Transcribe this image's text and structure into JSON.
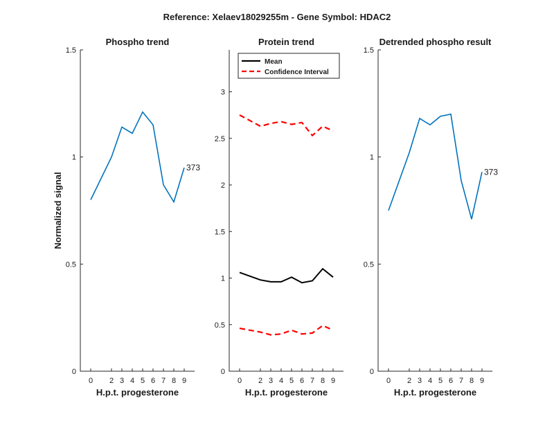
{
  "figure": {
    "title": "Reference:  Xelaev18029255m - Gene Symbol:  HDAC2"
  },
  "chart_data": [
    {
      "type": "line",
      "title": "Phospho trend",
      "xlabel": "H.p.t. progesterone",
      "ylabel": "Normalized signal",
      "xlim": [
        -1,
        10
      ],
      "ylim": [
        0,
        1.5
      ],
      "x_ticks": [
        0,
        2,
        3,
        4,
        5,
        6,
        7,
        8,
        9
      ],
      "x_tick_labels": [
        "0",
        "2",
        "3",
        "4",
        "5",
        "6",
        "7",
        "8",
        "9"
      ],
      "y_ticks": [
        0,
        0.5,
        1,
        1.5
      ],
      "y_tick_labels": [
        "0",
        "0.5",
        "1",
        "1.5"
      ],
      "series": [
        {
          "x": [
            0,
            2,
            3,
            4,
            5,
            6,
            7,
            8,
            9
          ],
          "values": [
            0.8,
            1.0,
            1.14,
            1.11,
            1.21,
            1.15,
            0.87,
            0.79,
            0.95
          ],
          "color": "#0072BD",
          "style": "solid"
        }
      ],
      "annotations": [
        {
          "text": "373",
          "x": 9,
          "y": 0.95
        }
      ]
    },
    {
      "type": "line",
      "title": "Protein trend",
      "xlabel": "H.p.t. progesterone",
      "ylabel": "",
      "xlim": [
        -1,
        10
      ],
      "ylim": [
        0,
        3.45
      ],
      "x_ticks": [
        0,
        2,
        3,
        4,
        5,
        6,
        7,
        8,
        9
      ],
      "x_tick_labels": [
        "0",
        "2",
        "3",
        "4",
        "5",
        "6",
        "7",
        "8",
        "9"
      ],
      "y_ticks": [
        0,
        0.5,
        1,
        1.5,
        2,
        2.5,
        3
      ],
      "y_tick_labels": [
        "0",
        "0.5",
        "1",
        "1.5",
        "2",
        "2.5",
        "3"
      ],
      "legend_position": "top-left",
      "series": [
        {
          "name": "Mean",
          "x": [
            0,
            2,
            3,
            4,
            5,
            6,
            7,
            8,
            9
          ],
          "values": [
            1.06,
            0.98,
            0.96,
            0.96,
            1.01,
            0.95,
            0.97,
            1.1,
            1.01
          ],
          "color": "#000000",
          "style": "solid"
        },
        {
          "name": "Confidence Interval",
          "x": [
            0,
            2,
            3,
            4,
            5,
            6,
            7,
            8,
            9
          ],
          "values": [
            2.75,
            2.63,
            2.66,
            2.68,
            2.65,
            2.67,
            2.53,
            2.63,
            2.58
          ],
          "color": "#FF0000",
          "style": "dashed"
        },
        {
          "name": "",
          "x": [
            0,
            2,
            3,
            4,
            5,
            6,
            7,
            8,
            9
          ],
          "values": [
            0.46,
            0.42,
            0.39,
            0.4,
            0.44,
            0.4,
            0.41,
            0.49,
            0.44
          ],
          "color": "#FF0000",
          "style": "dashed"
        }
      ],
      "legend": [
        {
          "label": "Mean",
          "color": "#000000",
          "style": "solid"
        },
        {
          "label": "Confidence Interval",
          "color": "#FF0000",
          "style": "dashed"
        }
      ],
      "annotations": []
    },
    {
      "type": "line",
      "title": "Detrended phospho result",
      "xlabel": "H.p.t. progesterone",
      "ylabel": "",
      "xlim": [
        -1,
        10
      ],
      "ylim": [
        0,
        1.5
      ],
      "x_ticks": [
        0,
        2,
        3,
        4,
        5,
        6,
        7,
        8,
        9
      ],
      "x_tick_labels": [
        "0",
        "2",
        "3",
        "4",
        "5",
        "6",
        "7",
        "8",
        "9"
      ],
      "y_ticks": [
        0,
        0.5,
        1,
        1.5
      ],
      "y_tick_labels": [
        "0",
        "0.5",
        "1",
        "1.5"
      ],
      "series": [
        {
          "x": [
            0,
            2,
            3,
            4,
            5,
            6,
            7,
            8,
            9
          ],
          "values": [
            0.75,
            1.02,
            1.18,
            1.15,
            1.19,
            1.2,
            0.89,
            0.71,
            0.93
          ],
          "color": "#0072BD",
          "style": "solid"
        }
      ],
      "annotations": [
        {
          "text": "373",
          "x": 9,
          "y": 0.93
        }
      ]
    }
  ]
}
